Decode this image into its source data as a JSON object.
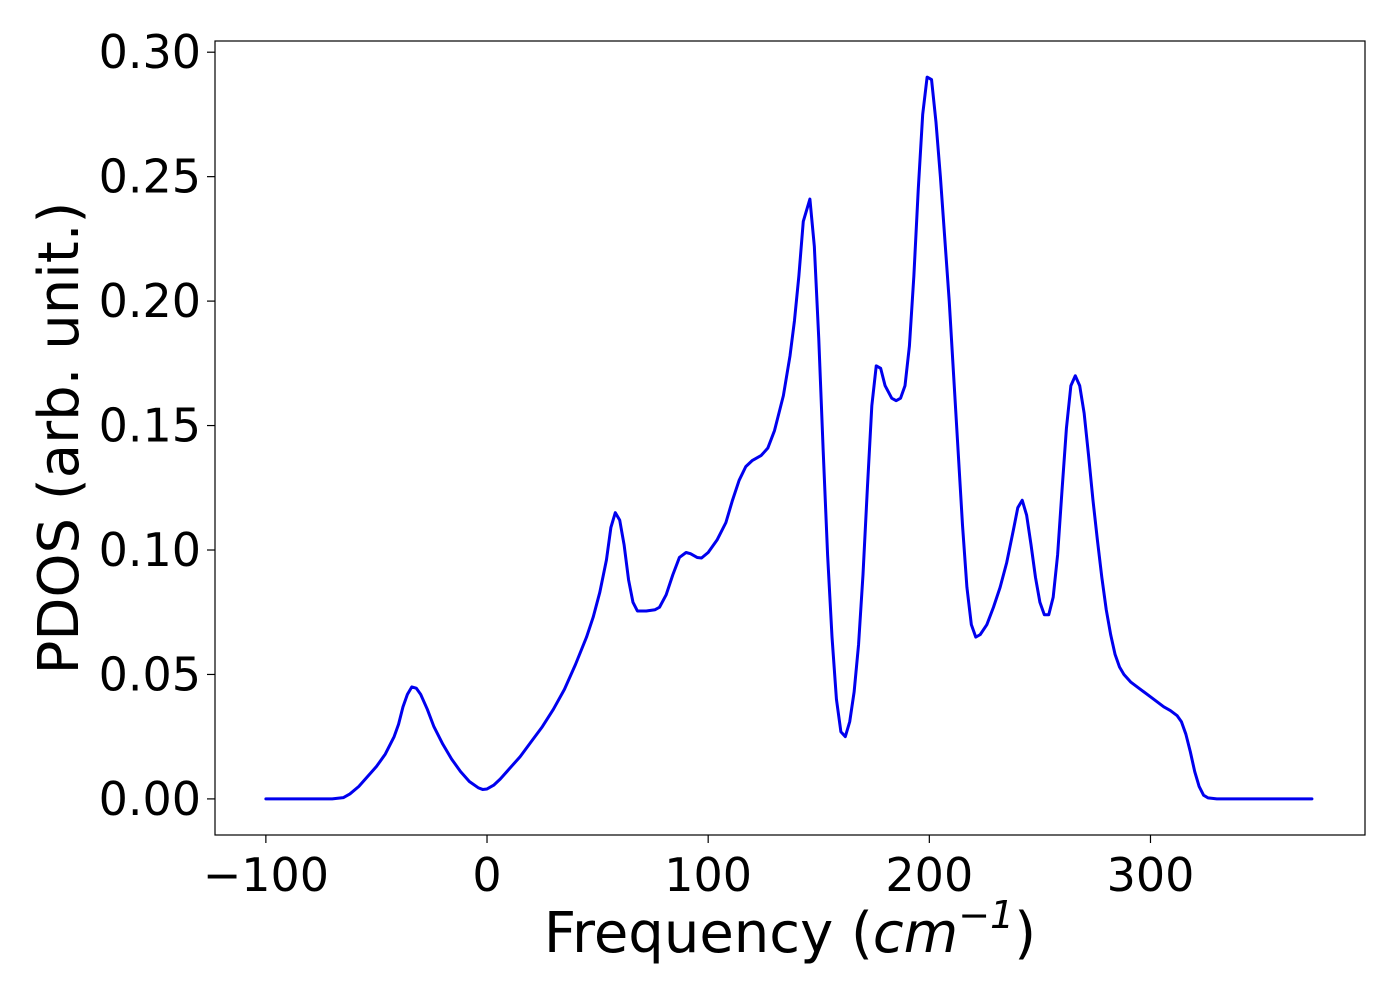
{
  "chart_data": {
    "type": "line",
    "title": "",
    "xlabel": {
      "prefix": "Frequency (",
      "unit_base": "cm",
      "unit_exponent": "−1",
      "suffix": ")"
    },
    "ylabel": "PDOS (arb. unit.)",
    "xlim": [
      -123,
      397
    ],
    "ylim": [
      -0.0145,
      0.3045
    ],
    "xticks": [
      -100,
      0,
      100,
      200,
      300
    ],
    "xtick_labels": [
      "−100",
      "0",
      "100",
      "200",
      "300"
    ],
    "yticks": [
      0.0,
      0.05,
      0.1,
      0.15,
      0.2,
      0.25,
      0.3
    ],
    "ytick_labels": [
      "0.00",
      "0.05",
      "0.10",
      "0.15",
      "0.20",
      "0.25",
      "0.30"
    ],
    "grid": false,
    "legend": "none",
    "series": [
      {
        "color": "#0000ee",
        "points": [
          [
            -100,
            0.0
          ],
          [
            -90,
            0.0
          ],
          [
            -80,
            0.0
          ],
          [
            -70,
            0.0
          ],
          [
            -65,
            0.0005
          ],
          [
            -62,
            0.002
          ],
          [
            -58,
            0.005
          ],
          [
            -54,
            0.009
          ],
          [
            -50,
            0.013
          ],
          [
            -46,
            0.018
          ],
          [
            -42,
            0.025
          ],
          [
            -40,
            0.03
          ],
          [
            -38,
            0.037
          ],
          [
            -36,
            0.042
          ],
          [
            -34,
            0.045
          ],
          [
            -32,
            0.0445
          ],
          [
            -30,
            0.042
          ],
          [
            -27,
            0.036
          ],
          [
            -24,
            0.029
          ],
          [
            -20,
            0.022
          ],
          [
            -16,
            0.016
          ],
          [
            -12,
            0.011
          ],
          [
            -8,
            0.007
          ],
          [
            -4,
            0.0045
          ],
          [
            -2,
            0.0038
          ],
          [
            0,
            0.004
          ],
          [
            3,
            0.0055
          ],
          [
            6,
            0.008
          ],
          [
            10,
            0.012
          ],
          [
            15,
            0.017
          ],
          [
            20,
            0.023
          ],
          [
            25,
            0.029
          ],
          [
            30,
            0.036
          ],
          [
            35,
            0.044
          ],
          [
            40,
            0.054
          ],
          [
            45,
            0.065
          ],
          [
            48,
            0.073
          ],
          [
            51,
            0.083
          ],
          [
            54,
            0.096
          ],
          [
            56,
            0.109
          ],
          [
            58,
            0.115
          ],
          [
            60,
            0.112
          ],
          [
            62,
            0.102
          ],
          [
            64,
            0.088
          ],
          [
            66,
            0.079
          ],
          [
            68,
            0.0755
          ],
          [
            72,
            0.0755
          ],
          [
            76,
            0.076
          ],
          [
            78,
            0.077
          ],
          [
            81,
            0.082
          ],
          [
            84,
            0.09
          ],
          [
            87,
            0.097
          ],
          [
            90,
            0.099
          ],
          [
            92,
            0.0985
          ],
          [
            95,
            0.097
          ],
          [
            97,
            0.0968
          ],
          [
            100,
            0.099
          ],
          [
            104,
            0.104
          ],
          [
            108,
            0.111
          ],
          [
            111,
            0.12
          ],
          [
            114,
            0.128
          ],
          [
            117,
            0.1335
          ],
          [
            120,
            0.136
          ],
          [
            124,
            0.138
          ],
          [
            127,
            0.141
          ],
          [
            130,
            0.148
          ],
          [
            134,
            0.162
          ],
          [
            137,
            0.178
          ],
          [
            139,
            0.192
          ],
          [
            141,
            0.21
          ],
          [
            143,
            0.232
          ],
          [
            146,
            0.241
          ],
          [
            148,
            0.222
          ],
          [
            150,
            0.185
          ],
          [
            152,
            0.14
          ],
          [
            154,
            0.098
          ],
          [
            156,
            0.065
          ],
          [
            158,
            0.04
          ],
          [
            160,
            0.027
          ],
          [
            162,
            0.025
          ],
          [
            164,
            0.031
          ],
          [
            166,
            0.043
          ],
          [
            168,
            0.062
          ],
          [
            170,
            0.09
          ],
          [
            172,
            0.125
          ],
          [
            174,
            0.158
          ],
          [
            176,
            0.174
          ],
          [
            178,
            0.173
          ],
          [
            180,
            0.166
          ],
          [
            183,
            0.161
          ],
          [
            185,
            0.16
          ],
          [
            187,
            0.161
          ],
          [
            189,
            0.166
          ],
          [
            191,
            0.182
          ],
          [
            193,
            0.21
          ],
          [
            195,
            0.245
          ],
          [
            197,
            0.275
          ],
          [
            199,
            0.29
          ],
          [
            201,
            0.289
          ],
          [
            203,
            0.272
          ],
          [
            205,
            0.25
          ],
          [
            207,
            0.225
          ],
          [
            209,
            0.2
          ],
          [
            211,
            0.17
          ],
          [
            213,
            0.14
          ],
          [
            215,
            0.11
          ],
          [
            217,
            0.085
          ],
          [
            219,
            0.07
          ],
          [
            221,
            0.065
          ],
          [
            223,
            0.066
          ],
          [
            226,
            0.07
          ],
          [
            229,
            0.077
          ],
          [
            232,
            0.085
          ],
          [
            235,
            0.095
          ],
          [
            238,
            0.108
          ],
          [
            240,
            0.117
          ],
          [
            242,
            0.12
          ],
          [
            244,
            0.114
          ],
          [
            246,
            0.102
          ],
          [
            248,
            0.089
          ],
          [
            250,
            0.079
          ],
          [
            252,
            0.074
          ],
          [
            254,
            0.074
          ],
          [
            256,
            0.081
          ],
          [
            258,
            0.098
          ],
          [
            260,
            0.124
          ],
          [
            262,
            0.149
          ],
          [
            264,
            0.166
          ],
          [
            266,
            0.17
          ],
          [
            268,
            0.166
          ],
          [
            270,
            0.155
          ],
          [
            272,
            0.138
          ],
          [
            274,
            0.12
          ],
          [
            276,
            0.104
          ],
          [
            278,
            0.089
          ],
          [
            280,
            0.076
          ],
          [
            282,
            0.066
          ],
          [
            284,
            0.058
          ],
          [
            286,
            0.053
          ],
          [
            288,
            0.05
          ],
          [
            291,
            0.047
          ],
          [
            294,
            0.045
          ],
          [
            297,
            0.043
          ],
          [
            300,
            0.041
          ],
          [
            303,
            0.039
          ],
          [
            306,
            0.037
          ],
          [
            309,
            0.0355
          ],
          [
            312,
            0.0335
          ],
          [
            314,
            0.031
          ],
          [
            316,
            0.026
          ],
          [
            318,
            0.019
          ],
          [
            320,
            0.011
          ],
          [
            322,
            0.005
          ],
          [
            324,
            0.0015
          ],
          [
            326,
            0.0004
          ],
          [
            330,
            0.0
          ],
          [
            340,
            0.0
          ],
          [
            350,
            0.0
          ],
          [
            360,
            0.0
          ],
          [
            373,
            0.0
          ]
        ]
      }
    ]
  }
}
